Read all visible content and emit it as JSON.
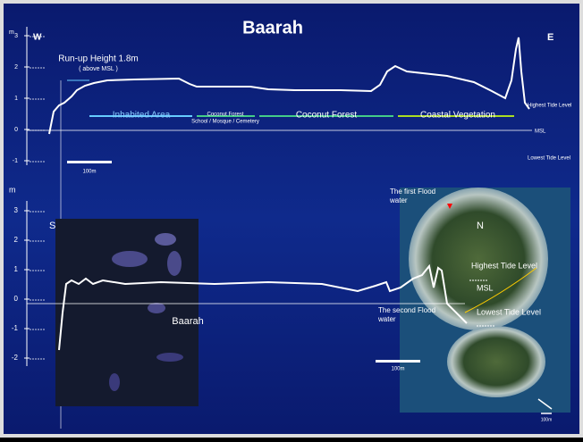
{
  "title": "Baarah",
  "top_profile": {
    "unit": "m",
    "west": "W",
    "east": "E",
    "yticks": [
      "3",
      "2",
      "1",
      "0",
      "-1"
    ],
    "runup": "Run-up Height 1.8m",
    "runup_note": "( above MSL )",
    "zones": [
      "Inhabited Area",
      "Coconut Forest",
      "School / Mosque / Cemetery",
      "Coconut Forest",
      "Coastal Vegetation"
    ],
    "levels": [
      "Highest Tide Level",
      "MSL",
      "Lowest Tide Level"
    ],
    "scale": "100m"
  },
  "bottom_profile": {
    "unit": "m",
    "south": "S",
    "north": "N",
    "yticks": [
      "3",
      "2",
      "1",
      "0",
      "-1",
      "-2"
    ],
    "map_label": "Baarah",
    "first_flood": "The first Flood water",
    "second_flood": "The second Flood water",
    "levels": [
      "Highest Tide Level",
      "MSL",
      "Lowest Tide Level"
    ],
    "scale": "100m",
    "photo_scale": "100m"
  }
}
